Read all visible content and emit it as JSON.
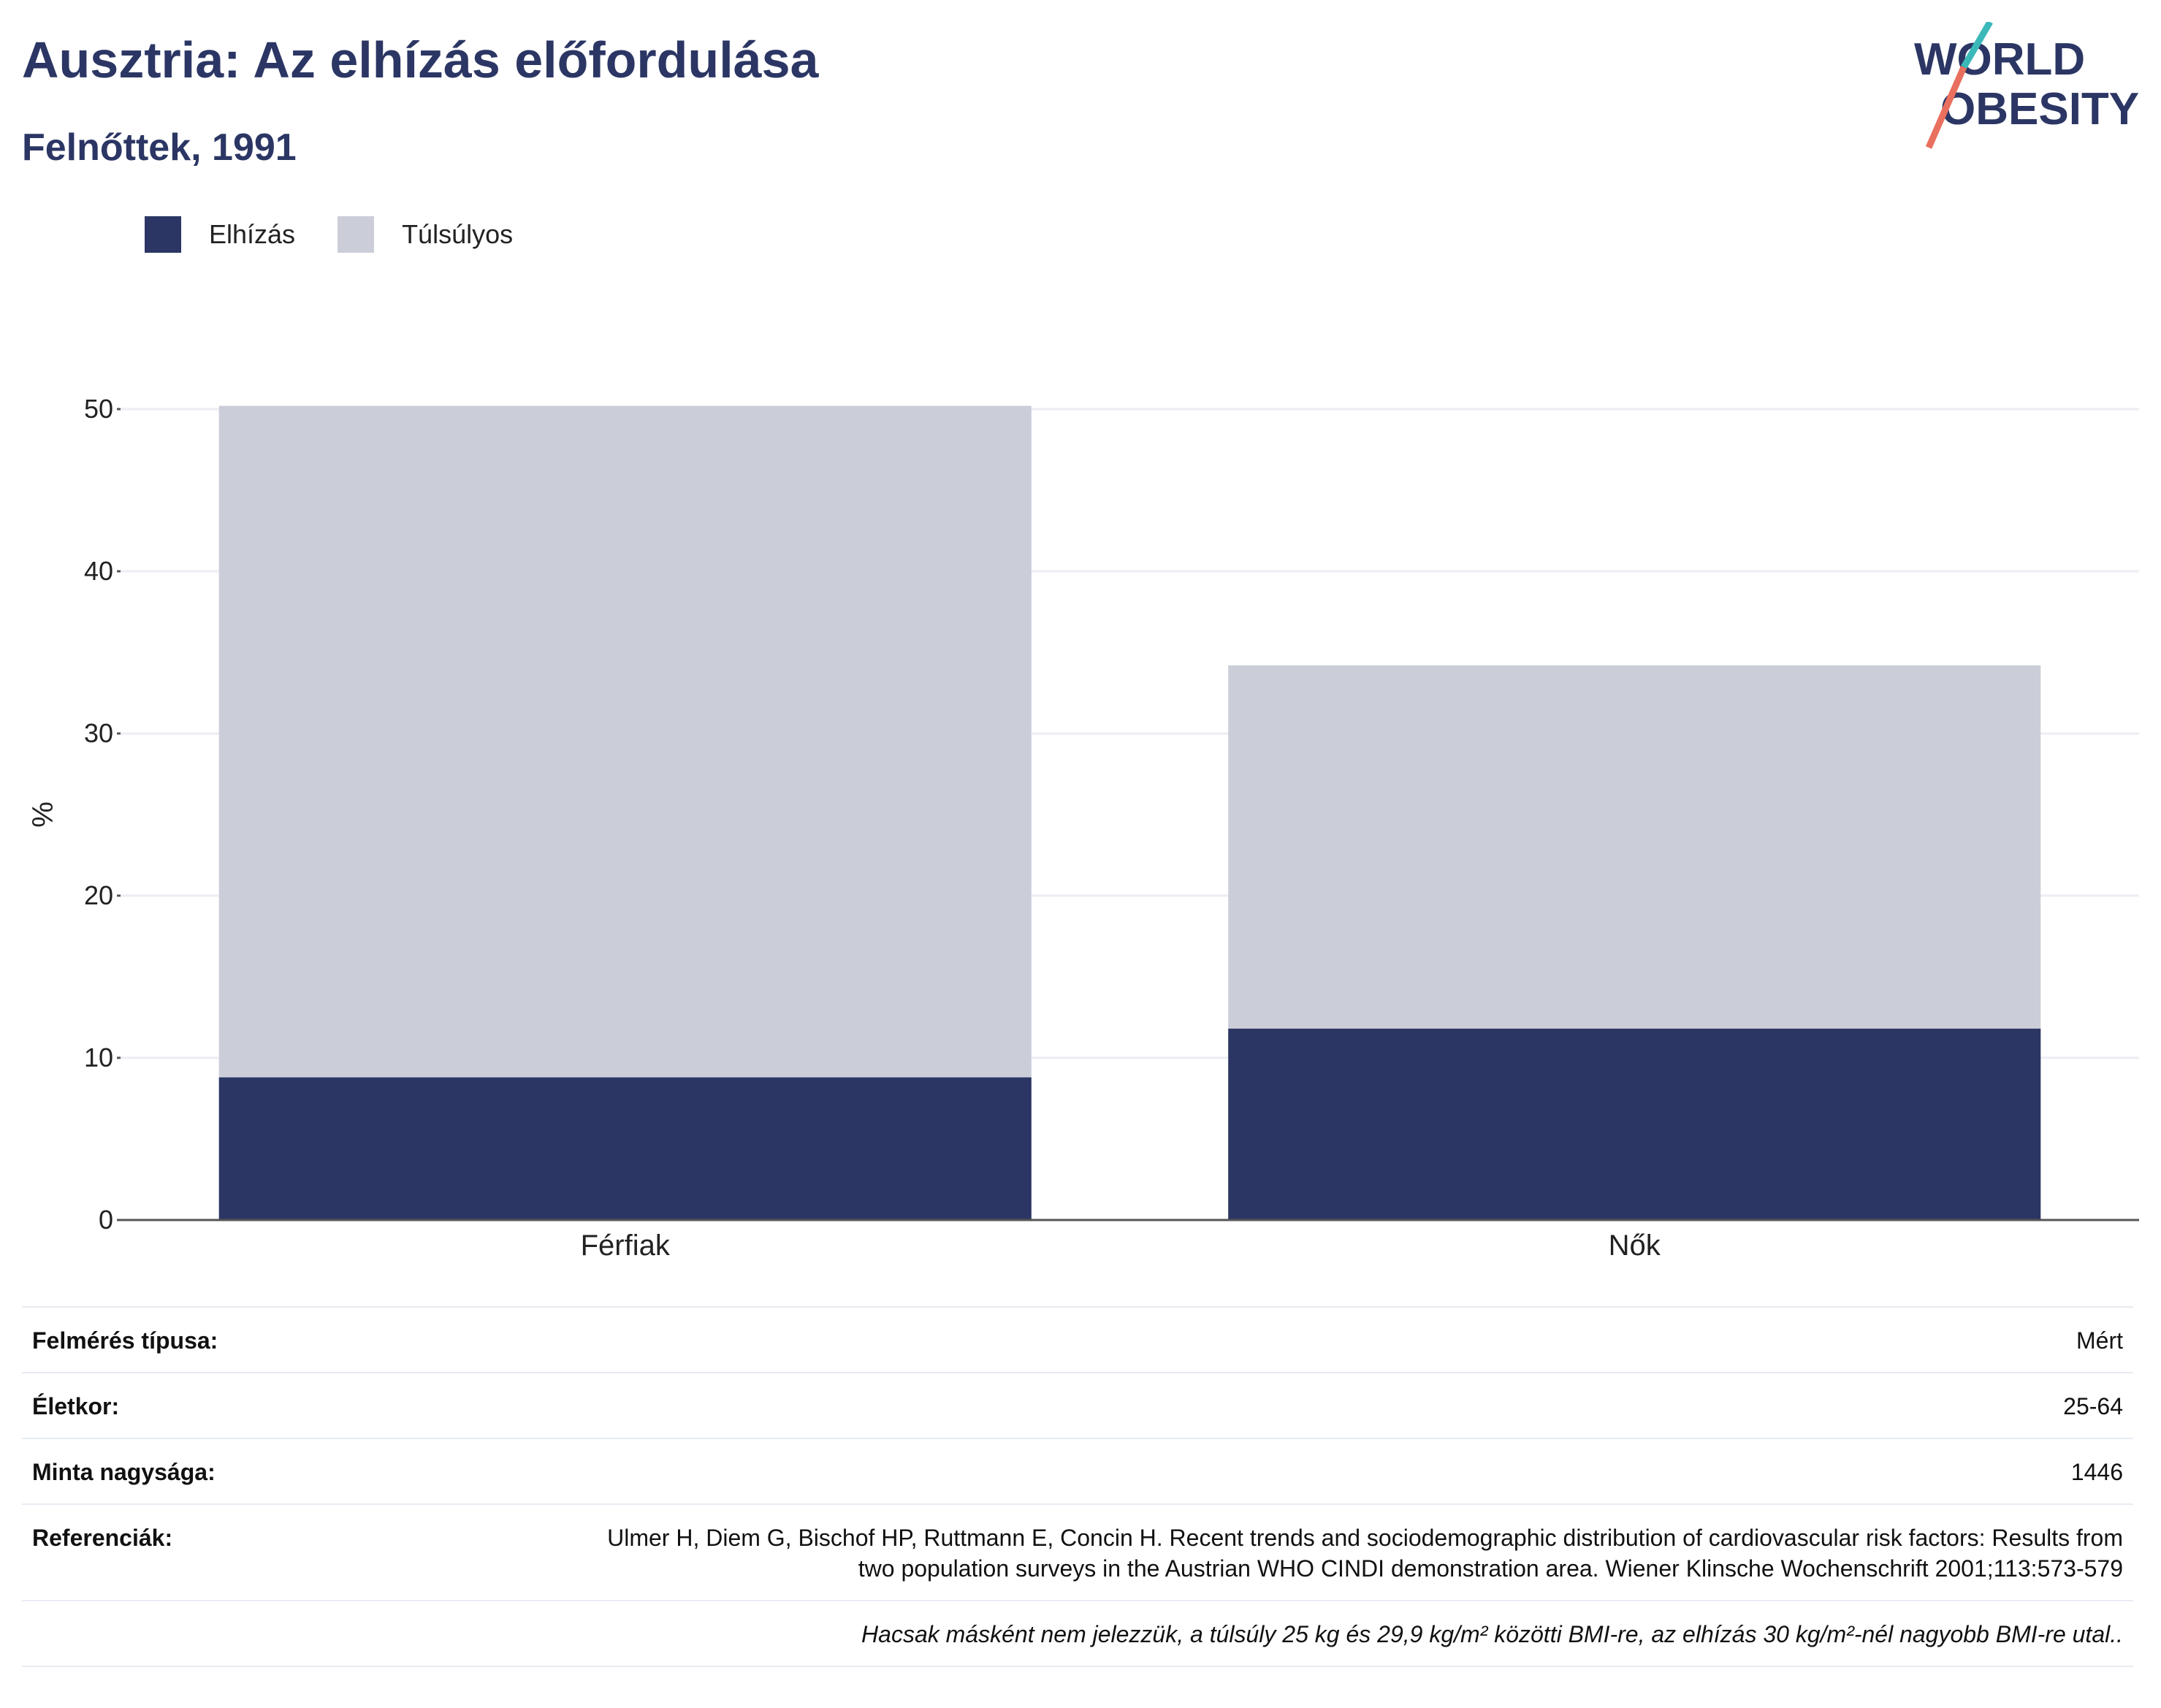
{
  "header": {
    "title": "Ausztria: Az elhízás előfordulása",
    "subtitle": "Felnőttek, 1991"
  },
  "logo": {
    "line1": "WORLD",
    "line2": "OBESITY"
  },
  "colors": {
    "obesity": "#2b3664",
    "overweight": "#cbcdd8",
    "title": "#2b3664",
    "logo_teal": "#3bb9b9",
    "logo_coral": "#e96f5e",
    "grid": "#eceef4",
    "axis": "#555555"
  },
  "chart_data": {
    "type": "bar",
    "stacked": true,
    "categories": [
      "Férfiak",
      "Nők"
    ],
    "series": [
      {
        "name": "Elhízás",
        "values": [
          8.8,
          11.8
        ]
      },
      {
        "name": "Túlsúlyos",
        "values": [
          41.4,
          22.4
        ]
      }
    ],
    "ylabel": "%",
    "ylim": [
      0,
      50
    ],
    "yticks": [
      0,
      10,
      20,
      30,
      40,
      50
    ],
    "grid": true,
    "legend_position": "top-left"
  },
  "meta": [
    {
      "label": "Felmérés típusa:",
      "value": "Mért"
    },
    {
      "label": "Életkor:",
      "value": "25-64"
    },
    {
      "label": "Minta nagysága:",
      "value": "1446"
    },
    {
      "label": "Referenciák:",
      "value": "Ulmer H, Diem G, Bischof HP, Ruttmann E, Concin H. Recent trends and sociodemographic distribution of cardiovascular risk factors: Results from two population surveys in the Austrian WHO CINDI demonstration area. Wiener Klinsche Wochenschrift 2001;113:573-579"
    }
  ],
  "note": "Hacsak másként nem jelezzük, a túlsúly 25 kg és 29,9 kg/m² közötti BMI-re, az elhízás 30 kg/m²-nél nagyobb BMI-re utal.."
}
